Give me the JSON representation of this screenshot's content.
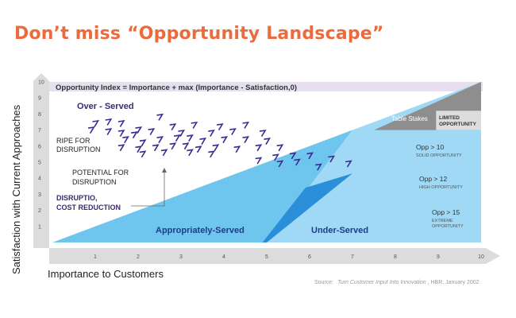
{
  "headline": "Don’t miss “Opportunity Landscape”",
  "colors": {
    "headline": "#ec6b3c",
    "over_band": "#e5dff0",
    "light_blue": "#6ec6ef",
    "mid_blue": "#9fd9f5",
    "dark_blue": "#2a8fd8",
    "gray_top": "#8e8e8e",
    "axis": "#dcdcdc",
    "purple": "#3b2a6b",
    "glyph": "#3b2a8c"
  },
  "chart_data": {
    "type": "scatter",
    "title": "Opportunity Index = Importance + max (Importance - Satisfaction,0)",
    "xlabel": "Importance to Customers",
    "ylabel": "Satisfaction with Current Approaches",
    "xlim": [
      0,
      10
    ],
    "ylim": [
      0,
      10
    ],
    "x_ticks": [
      "1",
      "2",
      "3",
      "4",
      "5",
      "6",
      "7",
      "8",
      "9",
      "10"
    ],
    "y_ticks": [
      "1",
      "2",
      "3",
      "4",
      "5",
      "6",
      "7",
      "8",
      "9",
      "10"
    ],
    "grid": false,
    "regions": [
      {
        "name": "Over - Served"
      },
      {
        "name": "Appropriately-Served"
      },
      {
        "name": "Under-Served"
      },
      {
        "name": "Table Stakes"
      }
    ],
    "annotations": {
      "ripe": [
        "RIPE FOR",
        "DISRUPTION"
      ],
      "potential": [
        "POTENTIAL FOR",
        "DISRUPTION"
      ],
      "cost": [
        "DISRUPTIO,",
        "COST REDUCTION"
      ],
      "limited": [
        "LIMITED",
        "OPPORTUNITY"
      ],
      "opp10": [
        "Opp > 10",
        "SOLID OPPORTUNITY"
      ],
      "opp12": [
        "Opp > 12",
        "HIGH OPPORTUNITY"
      ],
      "opp15": [
        "Opp > 15",
        "EXTREME",
        "OPPORTUNITY"
      ]
    },
    "points": [
      [
        1.0,
        7.4
      ],
      [
        1.3,
        7.5
      ],
      [
        1.6,
        7.4
      ],
      [
        2.5,
        7.8
      ],
      [
        0.9,
        7.0
      ],
      [
        1.3,
        6.9
      ],
      [
        1.6,
        6.8
      ],
      [
        2.0,
        7.0
      ],
      [
        2.8,
        7.2
      ],
      [
        3.3,
        7.3
      ],
      [
        3.9,
        7.2
      ],
      [
        4.5,
        7.3
      ],
      [
        1.9,
        6.7
      ],
      [
        2.3,
        6.9
      ],
      [
        3.0,
        6.8
      ],
      [
        3.7,
        6.8
      ],
      [
        4.2,
        6.9
      ],
      [
        4.9,
        6.8
      ],
      [
        1.7,
        6.4
      ],
      [
        2.1,
        6.2
      ],
      [
        2.5,
        6.4
      ],
      [
        2.9,
        6.5
      ],
      [
        3.2,
        6.5
      ],
      [
        3.5,
        6.3
      ],
      [
        4.0,
        6.4
      ],
      [
        4.5,
        6.4
      ],
      [
        5.0,
        6.3
      ],
      [
        1.6,
        5.9
      ],
      [
        2.0,
        5.8
      ],
      [
        2.4,
        5.9
      ],
      [
        2.8,
        6.0
      ],
      [
        3.1,
        6.0
      ],
      [
        3.4,
        5.8
      ],
      [
        3.8,
        5.9
      ],
      [
        4.3,
        5.8
      ],
      [
        4.8,
        5.9
      ],
      [
        5.3,
        5.9
      ],
      [
        2.1,
        5.5
      ],
      [
        2.6,
        5.6
      ],
      [
        3.2,
        5.6
      ],
      [
        3.7,
        5.5
      ],
      [
        4.8,
        5.1
      ],
      [
        5.2,
        5.3
      ],
      [
        5.6,
        5.4
      ],
      [
        6.0,
        5.4
      ],
      [
        5.3,
        4.9
      ],
      [
        5.7,
        5.0
      ],
      [
        6.5,
        5.2
      ],
      [
        6.9,
        4.9
      ],
      [
        6.2,
        4.7
      ]
    ],
    "source_prefix": "Source:",
    "source_title": "Turn Customer Input Into Innovation",
    "source_suffix": ", HBR, January 2002"
  }
}
